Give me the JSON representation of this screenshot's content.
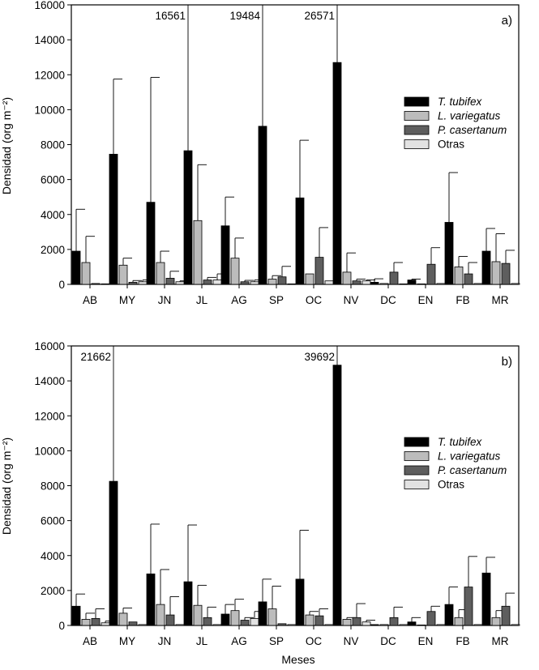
{
  "chart_data": [
    {
      "type": "bar",
      "panel_label": "a)",
      "title": "",
      "xlabel": "",
      "ylabel": "Densidad (org m⁻²)",
      "ylim": [
        0,
        16000
      ],
      "yticks": [
        "0",
        "2000",
        "4000",
        "6000",
        "8000",
        "10000",
        "12000",
        "14000",
        "16000"
      ],
      "categories": [
        "AB",
        "MY",
        "JN",
        "JL",
        "AG",
        "SP",
        "OC",
        "NV",
        "DC",
        "EN",
        "FB",
        "MR"
      ],
      "legend_position": "right",
      "series": [
        {
          "name": "T. tubifex",
          "italic": true,
          "color": "#000000",
          "values": [
            1900,
            7450,
            4700,
            7650,
            3350,
            9050,
            4950,
            12700,
            120,
            250,
            3550,
            1900
          ],
          "errors": [
            2400,
            4300,
            7150,
            8911,
            1650,
            10434,
            3300,
            13871,
            200,
            50,
            2850,
            1300
          ]
        },
        {
          "name": "L. variegatus",
          "italic": true,
          "color": "#bcbcbc",
          "values": [
            1250,
            1100,
            1250,
            3650,
            1500,
            300,
            600,
            700,
            50,
            0,
            1000,
            1300
          ],
          "errors": [
            1500,
            400,
            650,
            3200,
            1150,
            200,
            0,
            1100,
            0,
            0,
            600,
            1600
          ]
        },
        {
          "name": "P. casertanum",
          "italic": true,
          "color": "#5e5e5e",
          "values": [
            50,
            120,
            350,
            250,
            150,
            430,
            1550,
            200,
            700,
            1150,
            600,
            1200
          ],
          "errors": [
            0,
            100,
            400,
            150,
            80,
            600,
            1700,
            100,
            550,
            950,
            650,
            750
          ]
        },
        {
          "name": "Otras",
          "italic": false,
          "color": "#e2e2e2",
          "values": [
            30,
            150,
            150,
            250,
            150,
            0,
            200,
            200,
            20,
            50,
            50,
            50
          ],
          "errors": [
            0,
            100,
            50,
            350,
            100,
            0,
            0,
            50,
            0,
            0,
            0,
            0
          ]
        }
      ],
      "annotations": [
        "16561",
        "19484",
        "26571"
      ]
    },
    {
      "type": "bar",
      "panel_label": "b)",
      "title": "",
      "xlabel": "Meses",
      "ylabel": "Densidad (org m⁻²)",
      "ylim": [
        0,
        16000
      ],
      "yticks": [
        "0",
        "2000",
        "4000",
        "6000",
        "8000",
        "10000",
        "12000",
        "14000",
        "16000"
      ],
      "categories": [
        "AB",
        "MY",
        "JN",
        "JL",
        "AG",
        "SP",
        "OC",
        "NV",
        "DC",
        "EN",
        "FB",
        "MR"
      ],
      "legend_position": "right",
      "series": [
        {
          "name": "T. tubifex",
          "italic": true,
          "color": "#000000",
          "values": [
            1100,
            8250,
            2950,
            2500,
            650,
            1350,
            2650,
            14900,
            50,
            200,
            1200,
            3000
          ],
          "errors": [
            700,
            13412,
            2850,
            3250,
            550,
            1300,
            2800,
            24792,
            0,
            250,
            1000,
            900
          ]
        },
        {
          "name": "L. variegatus",
          "italic": true,
          "color": "#bcbcbc",
          "values": [
            350,
            700,
            1200,
            1150,
            850,
            950,
            600,
            350,
            50,
            0,
            450,
            450
          ],
          "errors": [
            350,
            300,
            2000,
            1150,
            650,
            1300,
            200,
            100,
            0,
            0,
            450,
            400
          ]
        },
        {
          "name": "P. casertanum",
          "italic": true,
          "color": "#5e5e5e",
          "values": [
            400,
            200,
            600,
            450,
            300,
            100,
            550,
            450,
            450,
            800,
            2200,
            1100
          ],
          "errors": [
            550,
            0,
            1050,
            600,
            150,
            0,
            400,
            800,
            600,
            300,
            1750,
            750
          ]
        },
        {
          "name": "Otras",
          "italic": false,
          "color": "#e2e2e2",
          "values": [
            150,
            50,
            50,
            50,
            400,
            50,
            50,
            200,
            50,
            50,
            50,
            50
          ],
          "errors": [
            100,
            0,
            0,
            0,
            400,
            0,
            0,
            100,
            0,
            0,
            0,
            0
          ]
        }
      ],
      "annotations": [
        "21662",
        "39692"
      ]
    }
  ]
}
